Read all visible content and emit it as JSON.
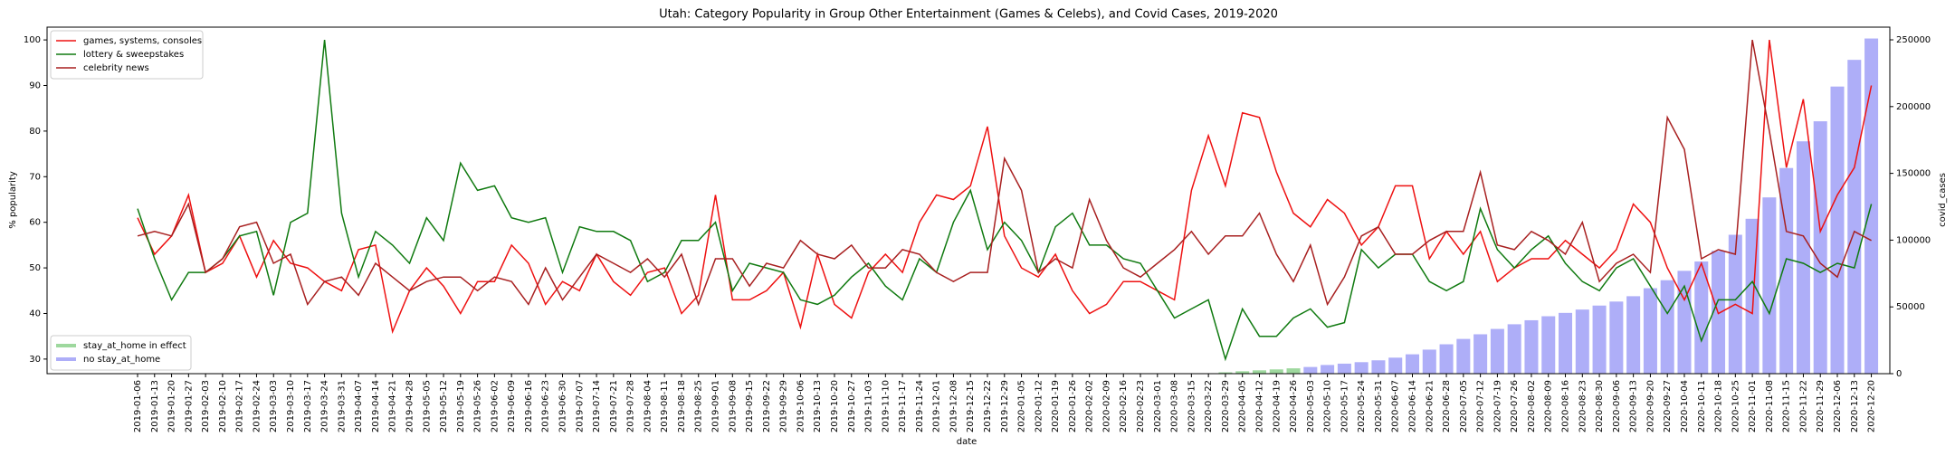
{
  "chart_data": {
    "type": "line",
    "title": "Utah: Category Popularity in Group Other Entertainment (Games & Celebs), and Covid Cases, 2019-2020",
    "xlabel": "date",
    "ylabel": "% popularity",
    "y2label": "covid_cases",
    "categories": [
      "2019-01-06",
      "2019-01-13",
      "2019-01-20",
      "2019-01-27",
      "2019-02-03",
      "2019-02-10",
      "2019-02-17",
      "2019-02-24",
      "2019-03-03",
      "2019-03-10",
      "2019-03-17",
      "2019-03-24",
      "2019-03-31",
      "2019-04-07",
      "2019-04-14",
      "2019-04-21",
      "2019-04-28",
      "2019-05-05",
      "2019-05-12",
      "2019-05-19",
      "2019-05-26",
      "2019-06-02",
      "2019-06-09",
      "2019-06-16",
      "2019-06-23",
      "2019-06-30",
      "2019-07-07",
      "2019-07-14",
      "2019-07-21",
      "2019-07-28",
      "2019-08-04",
      "2019-08-11",
      "2019-08-18",
      "2019-08-25",
      "2019-09-01",
      "2019-09-08",
      "2019-09-15",
      "2019-09-22",
      "2019-09-29",
      "2019-10-06",
      "2019-10-13",
      "2019-10-20",
      "2019-10-27",
      "2019-11-03",
      "2019-11-10",
      "2019-11-17",
      "2019-11-24",
      "2019-12-01",
      "2019-12-08",
      "2019-12-15",
      "2019-12-22",
      "2019-12-29",
      "2020-01-05",
      "2020-01-12",
      "2020-01-19",
      "2020-01-26",
      "2020-02-02",
      "2020-02-09",
      "2020-02-16",
      "2020-02-23",
      "2020-03-01",
      "2020-03-08",
      "2020-03-15",
      "2020-03-22",
      "2020-03-29",
      "2020-04-05",
      "2020-04-12",
      "2020-04-19",
      "2020-04-26",
      "2020-05-03",
      "2020-05-10",
      "2020-05-17",
      "2020-05-24",
      "2020-05-31",
      "2020-06-07",
      "2020-06-14",
      "2020-06-21",
      "2020-06-28",
      "2020-07-05",
      "2020-07-12",
      "2020-07-19",
      "2020-07-26",
      "2020-08-02",
      "2020-08-09",
      "2020-08-16",
      "2020-08-23",
      "2020-08-30",
      "2020-09-06",
      "2020-09-13",
      "2020-09-20",
      "2020-09-27",
      "2020-10-04",
      "2020-10-11",
      "2020-10-18",
      "2020-10-25",
      "2020-11-01",
      "2020-11-08",
      "2020-11-15",
      "2020-11-22",
      "2020-11-29",
      "2020-12-06",
      "2020-12-13",
      "2020-12-20"
    ],
    "series": [
      {
        "name": "games, systems, consoles",
        "color": "#ee1111",
        "values": [
          61,
          53,
          57,
          66,
          49,
          51,
          57,
          48,
          56,
          51,
          50,
          47,
          45,
          54,
          55,
          36,
          45,
          50,
          46,
          40,
          47,
          47,
          55,
          51,
          42,
          47,
          45,
          53,
          47,
          44,
          49,
          50,
          40,
          44,
          66,
          43,
          43,
          45,
          49,
          37,
          53,
          42,
          39,
          49,
          53,
          49,
          60,
          66,
          65,
          68,
          81,
          57,
          50,
          48,
          53,
          45,
          40,
          42,
          47,
          47,
          45,
          43,
          67,
          79,
          68,
          84,
          83,
          71,
          62,
          59,
          65,
          62,
          55,
          59,
          68,
          68,
          52,
          58,
          53,
          58,
          47,
          50,
          52,
          52,
          56,
          53,
          50,
          54,
          64,
          60,
          50,
          43,
          51,
          40,
          42,
          40,
          100,
          72,
          87,
          58,
          66,
          72,
          90
        ]
      },
      {
        "name": "lottery & sweepstakes",
        "color": "#107a10",
        "values": [
          63,
          52,
          43,
          49,
          49,
          52,
          57,
          58,
          44,
          60,
          62,
          100,
          62,
          48,
          58,
          55,
          51,
          61,
          56,
          73,
          67,
          68,
          61,
          60,
          61,
          49,
          59,
          58,
          58,
          56,
          47,
          49,
          56,
          56,
          60,
          45,
          51,
          50,
          49,
          43,
          42,
          44,
          48,
          51,
          46,
          43,
          52,
          49,
          60,
          67,
          54,
          60,
          56,
          49,
          59,
          62,
          55,
          55,
          52,
          51,
          45,
          39,
          41,
          43,
          30,
          41,
          35,
          35,
          39,
          41,
          37,
          38,
          54,
          50,
          53,
          53,
          47,
          45,
          47,
          63,
          54,
          50,
          54,
          57,
          51,
          47,
          45,
          50,
          52,
          46,
          40,
          46,
          34,
          43,
          43,
          47,
          40,
          52,
          51,
          49,
          51,
          50,
          64
        ]
      },
      {
        "name": "celebrity news",
        "color": "#a82020",
        "values": [
          57,
          58,
          57,
          64,
          49,
          52,
          59,
          60,
          51,
          53,
          42,
          47,
          48,
          44,
          51,
          48,
          45,
          47,
          48,
          48,
          45,
          48,
          47,
          42,
          50,
          43,
          48,
          53,
          51,
          49,
          52,
          48,
          53,
          42,
          52,
          52,
          46,
          51,
          50,
          56,
          53,
          52,
          55,
          50,
          50,
          54,
          53,
          49,
          47,
          49,
          49,
          74,
          67,
          49,
          52,
          50,
          65,
          56,
          50,
          48,
          51,
          54,
          58,
          53,
          57,
          57,
          62,
          53,
          47,
          55,
          42,
          48,
          57,
          59,
          53,
          53,
          56,
          58,
          58,
          71,
          55,
          54,
          58,
          56,
          53,
          60,
          47,
          51,
          53,
          49,
          83,
          76,
          52,
          54,
          53,
          100,
          80,
          58,
          57,
          51,
          48,
          58,
          56
        ]
      },
      {
        "name": "stay_at_home in effect",
        "type": "bar",
        "axis": "y2",
        "color": "#9ed89e",
        "values": [
          null,
          null,
          null,
          null,
          null,
          null,
          null,
          null,
          null,
          null,
          null,
          null,
          null,
          null,
          null,
          null,
          null,
          null,
          null,
          null,
          null,
          null,
          null,
          null,
          null,
          null,
          null,
          null,
          null,
          null,
          null,
          null,
          null,
          null,
          null,
          null,
          null,
          null,
          null,
          null,
          null,
          null,
          null,
          null,
          null,
          null,
          null,
          null,
          null,
          null,
          null,
          null,
          null,
          null,
          null,
          null,
          null,
          null,
          null,
          null,
          null,
          null,
          null,
          null,
          1000,
          1800,
          2500,
          3200,
          4000,
          null,
          null,
          null,
          null,
          null,
          null,
          null,
          null,
          null,
          null,
          null,
          null,
          null,
          null,
          null,
          null,
          null,
          null,
          null,
          null,
          null,
          null,
          null,
          null,
          null,
          null,
          null,
          null,
          null,
          null,
          null,
          null,
          null,
          null
        ]
      },
      {
        "name": "no stay_at_home",
        "type": "bar",
        "axis": "y2",
        "color": "#aeaef8",
        "values": [
          null,
          null,
          null,
          null,
          null,
          null,
          null,
          null,
          null,
          null,
          null,
          null,
          null,
          null,
          null,
          null,
          null,
          null,
          null,
          null,
          null,
          null,
          null,
          null,
          null,
          null,
          null,
          null,
          null,
          null,
          null,
          null,
          null,
          null,
          null,
          null,
          null,
          null,
          null,
          null,
          null,
          null,
          null,
          null,
          null,
          null,
          null,
          null,
          null,
          null,
          null,
          null,
          null,
          null,
          null,
          null,
          null,
          null,
          null,
          null,
          null,
          null,
          null,
          null,
          null,
          null,
          null,
          null,
          null,
          5000,
          6500,
          7500,
          8600,
          10000,
          12000,
          14500,
          18000,
          22000,
          26000,
          29500,
          33500,
          37000,
          40000,
          43000,
          45500,
          48000,
          51000,
          54000,
          58000,
          64000,
          70000,
          77000,
          84000,
          92000,
          104000,
          116000,
          132000,
          154000,
          174000,
          189000,
          215000,
          235000,
          251000
        ]
      }
    ],
    "ylim": [
      26.8,
      102.8
    ],
    "yticks": [
      30,
      40,
      50,
      60,
      70,
      80,
      90,
      100
    ],
    "y2lim": [
      0,
      259500
    ],
    "y2ticks": [
      0,
      50000,
      100000,
      150000,
      200000,
      250000
    ],
    "legend": "upper left",
    "bar_legend": "lower left",
    "grid": false
  }
}
